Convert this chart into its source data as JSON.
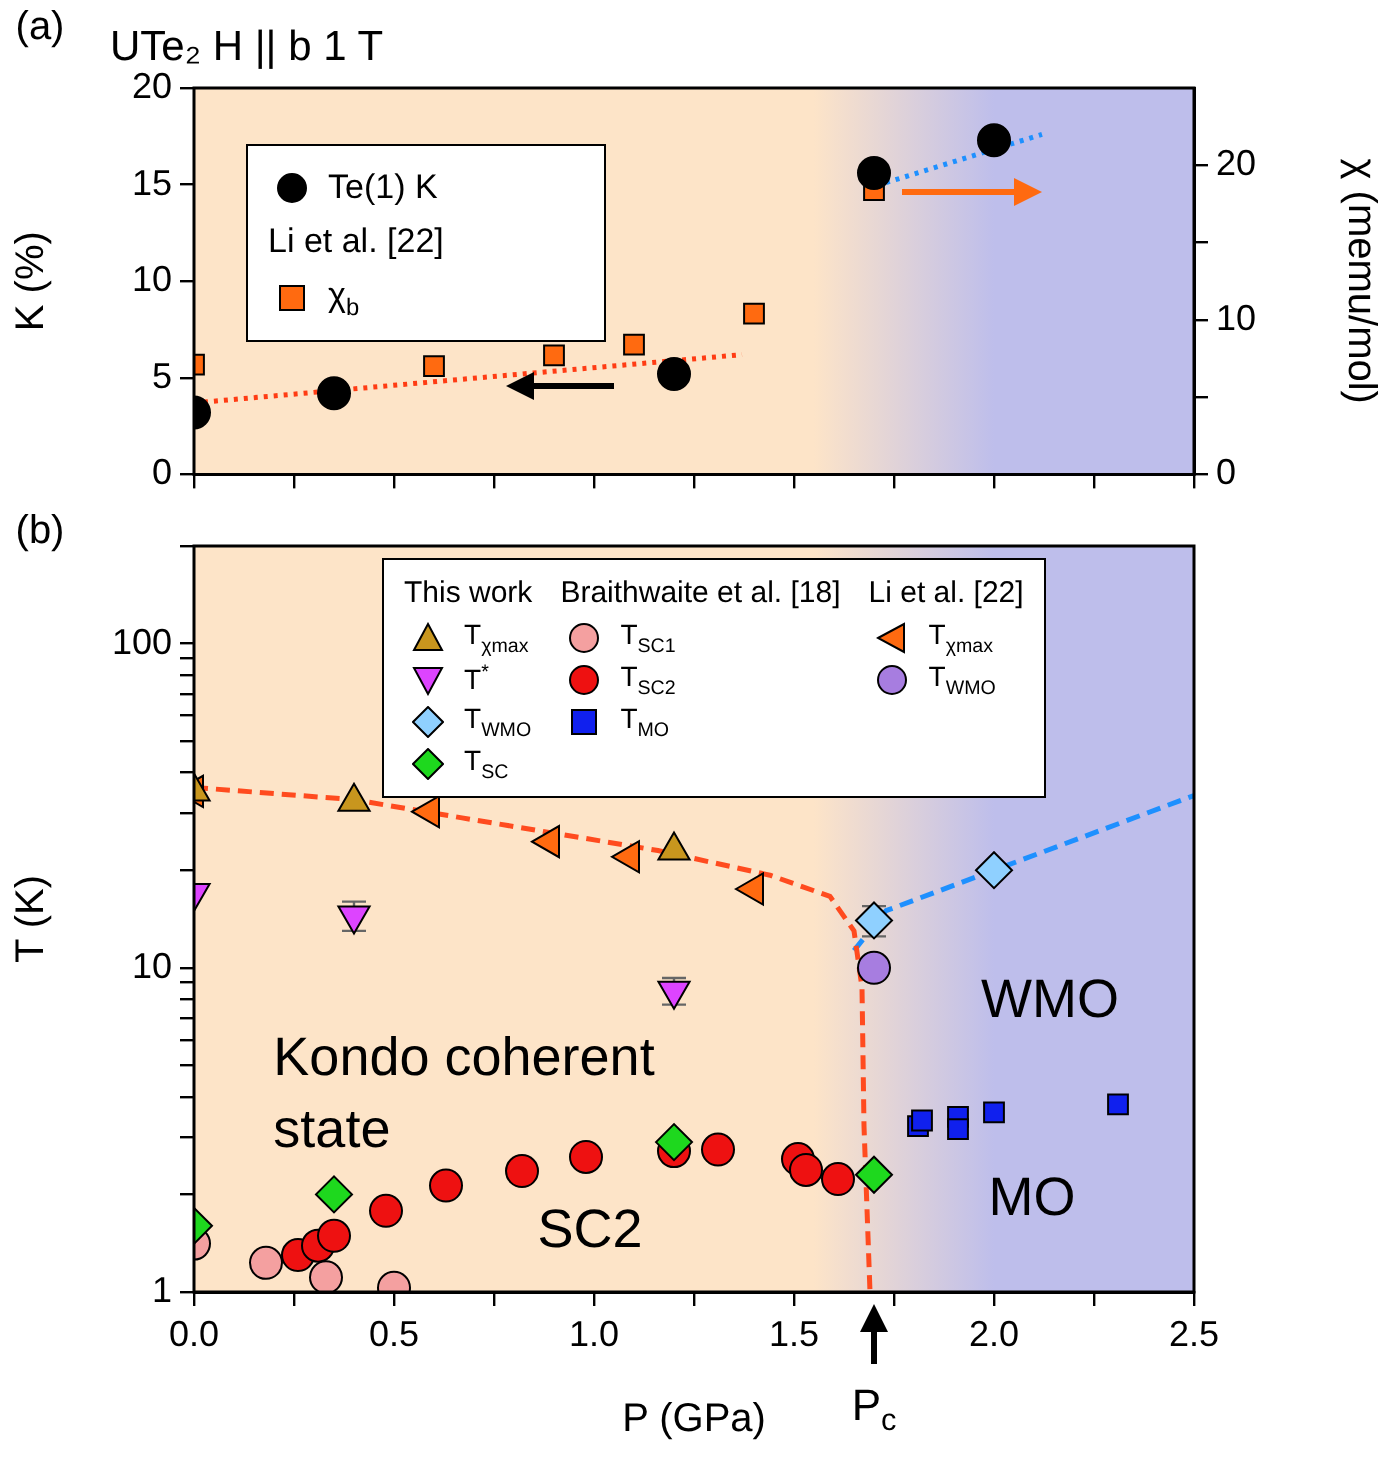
{
  "chart_data": [
    {
      "type": "scatter",
      "title": "UTe₂ H || b 1 T",
      "ylabel": "K (%)",
      "y2label": "χ (memu/mol)",
      "annotations": [
        "(a)"
      ],
      "legend_title": "Li et al. [22]",
      "legend": "top left",
      "grid": false,
      "tick_labels": "y",
      "xlim": [
        0,
        2.5
      ],
      "xticks": [
        {
          "value": 0,
          "label": null
        },
        {
          "value": 0.25,
          "label": null
        },
        {
          "value": 0.5,
          "label": null
        },
        {
          "value": 0.75,
          "label": null
        },
        {
          "value": 1,
          "label": null
        },
        {
          "value": 1.25,
          "label": null
        },
        {
          "value": 1.5,
          "label": null
        },
        {
          "value": 1.75,
          "label": null
        },
        {
          "value": 2,
          "label": null
        },
        {
          "value": 2.25,
          "label": null
        },
        {
          "value": 2.5,
          "label": null
        }
      ],
      "ylim": [
        0,
        20
      ],
      "yticks": [
        0,
        5,
        10,
        15,
        20
      ],
      "y2lim": [
        0,
        25
      ],
      "y2ticks": [
        0,
        {
          "value": 5,
          "label": null
        },
        10,
        {
          "value": 15,
          "label": null
        },
        20
      ],
      "bands": [
        {
          "axis": "x",
          "from": 0,
          "to": 1.55,
          "color": "#fde4c8"
        },
        {
          "axis": "x",
          "from": 1.55,
          "to": 2.0
        },
        {
          "axis": "x",
          "from": 2.0,
          "to": 2.5,
          "color": "#bebeeb"
        }
      ],
      "series": [
        {
          "name": "Te(1) K",
          "color": "#000000",
          "marker": "circle",
          "x": [
            0,
            0.35,
            1.2,
            1.7,
            2.0
          ],
          "values": [
            3.2,
            4.2,
            5.2,
            15.6,
            17.3
          ]
        },
        {
          "name": "χ$_{b}$",
          "color": "#ff6a10",
          "marker": "square",
          "axis": "y2",
          "x": [
            0,
            0.6,
            0.9,
            1.1,
            1.4,
            1.7
          ],
          "values": [
            7.1,
            7.0,
            7.7,
            8.4,
            10.4,
            18.4
          ]
        },
        {
          "type": "line",
          "color": "#ff3c14",
          "line_style": "dotted",
          "marker": "none",
          "x": [
            0,
            1.37
          ],
          "values": [
            3.7,
            6.2
          ]
        },
        {
          "type": "line",
          "color": "#1e90ff",
          "line_style": "dotted",
          "marker": "none",
          "x": [
            1.73,
            2.12
          ],
          "values": [
            15.1,
            17.6
          ]
        }
      ]
    },
    {
      "type": "scatter",
      "xlabel": "P (GPa)",
      "ylabel": "T (K)",
      "log": "y",
      "grid": false,
      "legend": "top",
      "legend_title": [
        "This work",
        "Braithwaite et al. [18]",
        "Li et al. [22]"
      ],
      "annotations": [
        "(b)",
        {
          "text": "P$_{c}$",
          "x": 1.7,
          "y": 1
        },
        "Kondo coherent state",
        "SC2",
        "WMO",
        "MO"
      ],
      "xlim": [
        0,
        2.5
      ],
      "xticks": [
        {
          "value": 0,
          "label": "0.0"
        },
        {
          "value": 0.25,
          "label": null
        },
        {
          "value": 0.5,
          "label": "0.5"
        },
        {
          "value": 0.75,
          "label": null
        },
        {
          "value": 1,
          "label": "1.0"
        },
        {
          "value": 1.25,
          "label": null
        },
        {
          "value": 1.5,
          "label": "1.5"
        },
        {
          "value": 1.75,
          "label": null
        },
        {
          "value": 2,
          "label": "2.0"
        },
        {
          "value": 2.25,
          "label": null
        },
        {
          "value": 2.5,
          "label": "2.5"
        }
      ],
      "ylim": [
        1,
        200
      ],
      "bands": [
        {
          "axis": "x",
          "from": 0,
          "to": 1.55,
          "color": "#fde4c8"
        },
        {
          "axis": "x",
          "from": 1.55,
          "to": 2.0
        },
        {
          "axis": "x",
          "from": 2.0,
          "to": 2.5,
          "color": "#bebeeb"
        }
      ],
      "yticks": [
        1,
        {
          "value": 2,
          "label": null
        },
        {
          "value": 3,
          "label": null
        },
        {
          "value": 4,
          "label": null
        },
        {
          "value": 5,
          "label": null
        },
        {
          "value": 6,
          "label": null
        },
        {
          "value": 7,
          "label": null
        },
        {
          "value": 8,
          "label": null
        },
        {
          "value": 9,
          "label": null
        },
        10,
        {
          "value": 20,
          "label": null
        },
        {
          "value": 30,
          "label": null
        },
        {
          "value": 40,
          "label": null
        },
        {
          "value": 50,
          "label": null
        },
        {
          "value": 60,
          "label": null
        },
        {
          "value": 70,
          "label": null
        },
        {
          "value": 80,
          "label": null
        },
        {
          "value": 90,
          "label": null
        },
        100,
        {
          "value": 200,
          "label": null
        }
      ],
      "series": [
        {
          "name": "T$_{χmax}$",
          "color": "#c8961e",
          "marker": "triangle",
          "x": [
            0,
            0.4,
            1.2
          ],
          "values": [
            35,
            32.5,
            23
          ]
        },
        {
          "name": "T$^{*}$",
          "color": "#dd44ff",
          "marker": "triangle-down",
          "x": [
            0,
            0.4,
            1.2
          ],
          "values": [
            17,
            14.5,
            8.5
          ],
          "errors": [
            null,
            1.5,
            0.8
          ]
        },
        {
          "name": "T$_{WMO}$",
          "color": "#8fd0ff",
          "marker": "diamond",
          "x": [
            1.7,
            2.0
          ],
          "values": [
            14,
            20
          ],
          "errors": [
            1.5,
            null
          ]
        },
        {
          "name": "T$_{SC}$",
          "color": "#1ed81e",
          "marker": "diamond",
          "x": [
            0,
            0.35,
            1.2,
            1.7
          ],
          "values": [
            1.6,
            2.0,
            2.9,
            2.3
          ]
        },
        {
          "name": "T$_{SC1}$",
          "color": "#f4a0a0",
          "marker": "circle",
          "x": [
            0,
            0.18,
            0.33,
            0.5
          ],
          "values": [
            1.41,
            1.23,
            1.11,
            1.03
          ]
        },
        {
          "name": "T$_{SC2}$",
          "color": "#ee1111",
          "marker": "circle",
          "x": [
            0.26,
            0.31,
            0.35,
            0.48,
            0.63,
            0.82,
            0.98,
            1.2,
            1.31,
            1.51,
            1.53,
            1.61
          ],
          "values": [
            1.3,
            1.39,
            1.49,
            1.78,
            2.13,
            2.36,
            2.61,
            2.72,
            2.75,
            2.57,
            2.38,
            2.23
          ]
        },
        {
          "name": "T$_{MO}$",
          "color": "#1020ee",
          "marker": "square",
          "x": [
            1.81,
            1.82,
            1.91,
            1.91,
            2.0,
            2.31
          ],
          "values": [
            3.25,
            3.38,
            3.47,
            3.18,
            3.58,
            3.79
          ]
        },
        {
          "name": "T$_{χmax}$",
          "color": "#ff6a10",
          "marker": "triangle-left",
          "x": [
            0,
            0.59,
            0.89,
            1.09,
            1.4
          ],
          "values": [
            35,
            30.3,
            24.5,
            22,
            17.5
          ]
        },
        {
          "name": "T$_{WMO}$",
          "color": "#a77de0",
          "marker": "circle",
          "x": [
            1.7
          ],
          "values": [
            10
          ]
        },
        {
          "type": "line",
          "color": "#ff4b1f",
          "line_style": "dashed",
          "marker": "none",
          "x": [
            0,
            0.4,
            0.67,
            1.16,
            1.44,
            1.59,
            1.65,
            1.67,
            1.675,
            1.69
          ],
          "values": [
            36,
            33,
            29,
            23,
            19.3,
            16.6,
            13,
            8.7,
            3.25,
            1
          ]
        },
        {
          "type": "line",
          "color": "#1e90ff",
          "line_style": "dashed",
          "marker": "none",
          "x": [
            1.65,
            1.73,
            2.0,
            2.5
          ],
          "values": [
            11.3,
            15,
            20,
            34
          ]
        }
      ]
    }
  ]
}
